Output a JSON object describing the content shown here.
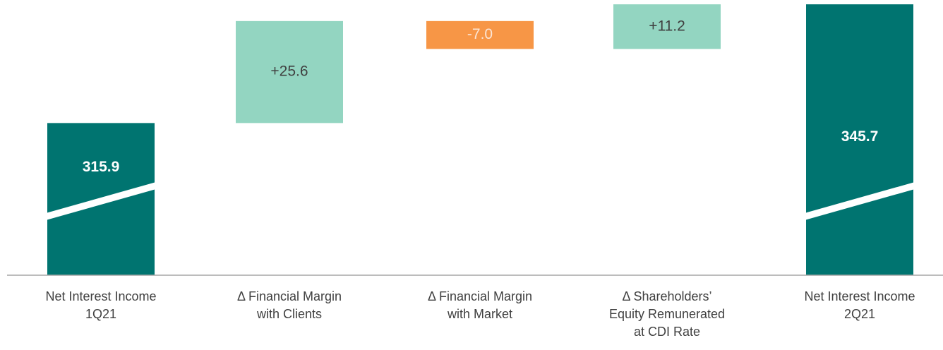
{
  "chart_data": {
    "type": "waterfall",
    "categories": [
      "Net Interest Income\n1Q21",
      "Δ Financial Margin\nwith Clients",
      "Δ Financial Margin\nwith Market",
      "Δ Shareholders’\nEquity Remunerated\nat CDI Rate",
      "Net Interest Income\n2Q21"
    ],
    "values": [
      315.9,
      25.6,
      -7.0,
      11.2,
      345.7
    ],
    "value_labels": [
      "315.9",
      "+25.6",
      "-7.0",
      "+11.2",
      "345.7"
    ],
    "kinds": [
      "total",
      "delta",
      "delta",
      "delta",
      "total"
    ],
    "colors": {
      "total": "#007470",
      "increase": "#93d5c1",
      "decrease": "#f79646"
    },
    "ylim": [
      277.7,
      345.9
    ]
  }
}
